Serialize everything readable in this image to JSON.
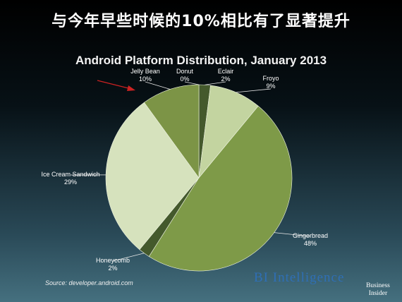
{
  "headline": "与今年早些时候的10%相比有了显著提升",
  "chart_data": {
    "type": "pie",
    "title": "Android Platform Distribution, January 2013",
    "labels": [
      "Donut",
      "Eclair",
      "Froyo",
      "Gingerbread",
      "Honeycomb",
      "Ice Cream Sandwich",
      "Jelly Bean"
    ],
    "values": [
      0,
      2,
      9,
      48,
      2,
      29,
      10
    ],
    "value_labels": [
      "0%",
      "2%",
      "9%",
      "48%",
      "2%",
      "29%",
      "10%"
    ],
    "colors": [
      "#5c7a3a",
      "#44592c",
      "#c3d4a0",
      "#7e9a48",
      "#44592c",
      "#d6e2bd",
      "#7c9446"
    ],
    "highlight": "Jelly Bean"
  },
  "annotation": {
    "arrow_color": "#cc2222"
  },
  "source": "Source: developer.android.com",
  "brand": {
    "bi_intelligence": "BI Intelligence",
    "logo_line1": "Business",
    "logo_line2": "Insider"
  }
}
